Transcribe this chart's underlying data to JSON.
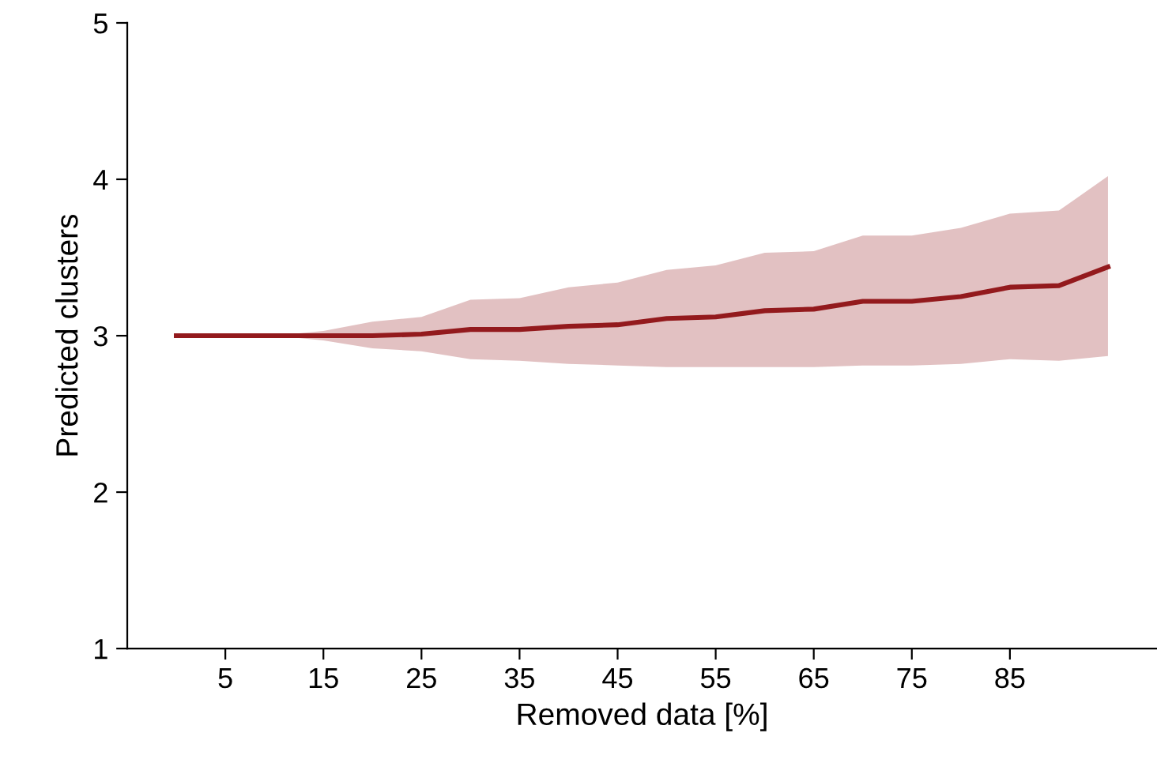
{
  "chart_data": {
    "type": "line",
    "xlabel": "Removed data [%]",
    "ylabel": "Predicted clusters",
    "x": [
      0,
      5,
      10,
      15,
      20,
      25,
      30,
      35,
      40,
      45,
      50,
      55,
      60,
      65,
      70,
      75,
      80,
      85,
      90,
      95
    ],
    "series": [
      {
        "color": "#931a1d",
        "values": [
          3.0,
          3.0,
          3.0,
          3.0,
          3.0,
          3.01,
          3.04,
          3.04,
          3.06,
          3.07,
          3.11,
          3.12,
          3.16,
          3.17,
          3.22,
          3.22,
          3.25,
          3.31,
          3.32,
          3.44
        ],
        "upper": [
          3.0,
          3.0,
          3.0,
          3.03,
          3.09,
          3.12,
          3.23,
          3.24,
          3.31,
          3.34,
          3.42,
          3.45,
          3.53,
          3.54,
          3.64,
          3.64,
          3.69,
          3.78,
          3.8,
          4.02
        ],
        "lower": [
          3.0,
          3.0,
          3.0,
          2.97,
          2.92,
          2.9,
          2.85,
          2.84,
          2.82,
          2.81,
          2.8,
          2.8,
          2.8,
          2.8,
          2.81,
          2.81,
          2.82,
          2.85,
          2.84,
          2.87
        ]
      }
    ],
    "xlim": [
      -5,
      100
    ],
    "ylim": [
      1,
      5
    ],
    "xticks": [
      5,
      15,
      25,
      35,
      45,
      55,
      65,
      75,
      85
    ],
    "yticks": [
      1,
      2,
      3,
      4,
      5
    ],
    "grid": false,
    "legend": false,
    "marker": "none",
    "line_style": "solid"
  }
}
